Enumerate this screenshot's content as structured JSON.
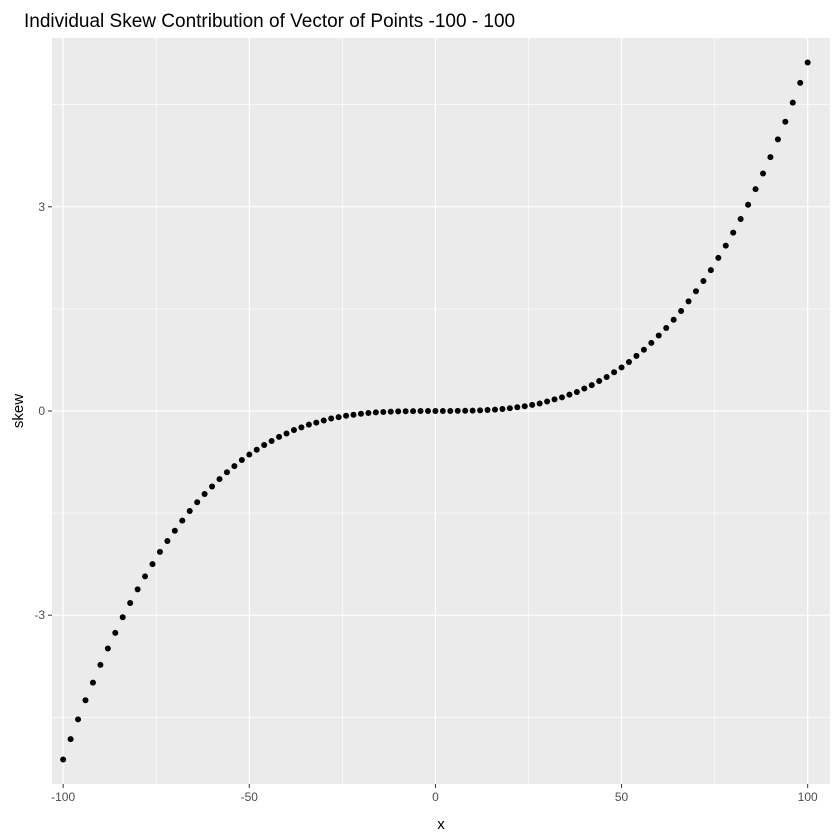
{
  "chart_data": {
    "type": "scatter",
    "title": "Individual Skew Contribution of Vector of Points -100 - 100",
    "xlabel": "x",
    "ylabel": "skew",
    "xlim": [
      -103,
      106
    ],
    "ylim": [
      -5.48,
      5.48
    ],
    "x_ticks": [
      -100,
      -50,
      0,
      50,
      100
    ],
    "x_tick_labels": [
      "-100",
      "-50",
      "0",
      "50",
      "100"
    ],
    "y_ticks": [
      -3,
      0,
      3
    ],
    "y_tick_labels": [
      "-3",
      "0",
      "3"
    ],
    "x_minor": [
      -75,
      -25,
      25,
      75
    ],
    "y_minor": [
      -4.5,
      -1.5,
      1.5,
      4.5
    ],
    "grid": true,
    "legend": "none",
    "point_color": "#000000",
    "panel_color": "#ebebeb",
    "grid_color": "#ffffff",
    "series": [
      {
        "x": [
          -100,
          -98,
          -96,
          -94,
          -92,
          -90,
          -88,
          -86,
          -84,
          -82,
          -80,
          -78,
          -76,
          -74,
          -72,
          -70,
          -68,
          -66,
          -64,
          -62,
          -60,
          -58,
          -56,
          -54,
          -52,
          -50,
          -48,
          -46,
          -44,
          -42,
          -40,
          -38,
          -36,
          -34,
          -32,
          -30,
          -28,
          -26,
          -24,
          -22,
          -20,
          -18,
          -16,
          -14,
          -12,
          -10,
          -8,
          -6,
          -4,
          -2,
          0,
          2,
          4,
          6,
          8,
          10,
          12,
          14,
          16,
          18,
          20,
          22,
          24,
          26,
          28,
          30,
          32,
          34,
          36,
          38,
          40,
          42,
          44,
          46,
          48,
          50,
          52,
          54,
          56,
          58,
          60,
          62,
          64,
          66,
          68,
          70,
          72,
          74,
          76,
          78,
          80,
          82,
          84,
          86,
          88,
          90,
          92,
          94,
          96,
          98,
          100
        ],
        "y": [
          -5.12,
          -4.82,
          -4.53,
          -4.25,
          -3.99,
          -3.73,
          -3.49,
          -3.26,
          -3.03,
          -2.82,
          -2.62,
          -2.43,
          -2.25,
          -2.07,
          -1.91,
          -1.76,
          -1.61,
          -1.47,
          -1.34,
          -1.22,
          -1.11,
          -1.0,
          -0.9,
          -0.81,
          -0.72,
          -0.64,
          -0.57,
          -0.5,
          -0.44,
          -0.38,
          -0.33,
          -0.28,
          -0.24,
          -0.2,
          -0.17,
          -0.14,
          -0.11,
          -0.09,
          -0.07,
          -0.055,
          -0.041,
          -0.03,
          -0.021,
          -0.014,
          -0.009,
          -0.005,
          -0.003,
          -0.001,
          0.0,
          0.0,
          0.0,
          0.0,
          0.0,
          0.001,
          0.003,
          0.005,
          0.009,
          0.014,
          0.021,
          0.03,
          0.041,
          0.055,
          0.07,
          0.09,
          0.11,
          0.14,
          0.17,
          0.2,
          0.24,
          0.28,
          0.33,
          0.38,
          0.44,
          0.5,
          0.57,
          0.64,
          0.72,
          0.81,
          0.9,
          1.0,
          1.11,
          1.22,
          1.34,
          1.47,
          1.61,
          1.76,
          1.91,
          2.07,
          2.25,
          2.43,
          2.62,
          2.82,
          3.03,
          3.26,
          3.49,
          3.73,
          3.99,
          4.25,
          4.53,
          4.82,
          5.12
        ]
      }
    ]
  }
}
